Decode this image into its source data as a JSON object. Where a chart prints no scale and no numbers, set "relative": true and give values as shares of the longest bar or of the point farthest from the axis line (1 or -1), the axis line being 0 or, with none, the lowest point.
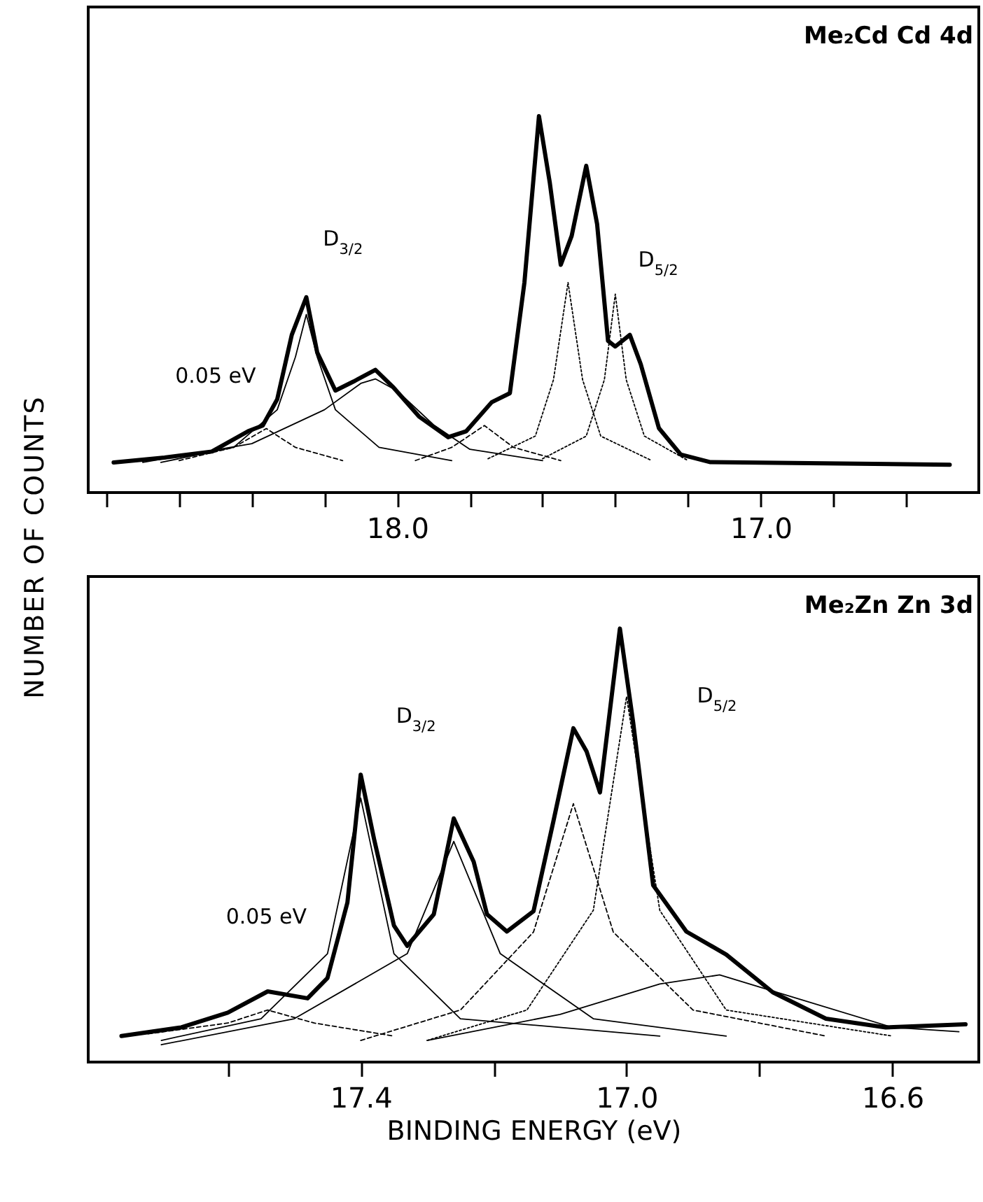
{
  "chart_data": [
    {
      "type": "line",
      "title": "Me₂Cd   Cd  4d",
      "ylabel": "NUMBER OF COUNTS",
      "relative": true,
      "xlim": [
        18.85,
        16.4
      ],
      "xticks": [
        {
          "value": 18.8,
          "label": null
        },
        {
          "value": 18.6,
          "label": null
        },
        {
          "value": 18.4,
          "label": null
        },
        {
          "value": 18.2,
          "label": null
        },
        {
          "value": 18.0,
          "label": "18.0"
        },
        {
          "value": 17.8,
          "label": null
        },
        {
          "value": 17.6,
          "label": null
        },
        {
          "value": 17.4,
          "label": null
        },
        {
          "value": 17.2,
          "label": null
        },
        {
          "value": 17.0,
          "label": "17.0"
        },
        {
          "value": 16.8,
          "label": null
        },
        {
          "value": 16.6,
          "label": null
        }
      ],
      "series": [
        {
          "color": "#000000",
          "line_style": "solid",
          "x": [
            18.78,
            18.64,
            18.51,
            18.41,
            18.37,
            18.33,
            18.29,
            18.25,
            18.22,
            18.17,
            18.12,
            18.06,
            18.01,
            17.94,
            17.86,
            17.81,
            17.74,
            17.69,
            17.65,
            17.61,
            17.58,
            17.55,
            17.52,
            17.48,
            17.45,
            17.42,
            17.4,
            17.36,
            17.33,
            17.28,
            17.22,
            17.14,
            16.48
          ],
          "values": [
            0.08,
            0.093,
            0.109,
            0.163,
            0.178,
            0.248,
            0.419,
            0.519,
            0.372,
            0.271,
            0.295,
            0.326,
            0.279,
            0.202,
            0.147,
            0.163,
            0.24,
            0.264,
            0.558,
            1.0,
            0.822,
            0.605,
            0.682,
            0.868,
            0.713,
            0.403,
            0.388,
            0.419,
            0.341,
            0.171,
            0.101,
            0.081,
            0.074
          ]
        },
        {
          "color": "#000000",
          "line_style": "dashed",
          "x": [
            18.6,
            18.45,
            18.36,
            18.28,
            18.15
          ],
          "values": [
            0.085,
            0.12,
            0.17,
            0.12,
            0.085
          ]
        },
        {
          "color": "#000000",
          "line_style": "solid",
          "x": [
            18.65,
            18.45,
            18.33,
            18.28,
            18.25,
            18.22,
            18.17,
            18.05,
            17.85
          ],
          "values": [
            0.08,
            0.12,
            0.22,
            0.36,
            0.473,
            0.36,
            0.22,
            0.12,
            0.085
          ]
        },
        {
          "color": "#000000",
          "line_style": "solid",
          "x": [
            18.7,
            18.4,
            18.2,
            18.1,
            18.06,
            18.0,
            17.9,
            17.8,
            17.6
          ],
          "values": [
            0.08,
            0.13,
            0.22,
            0.29,
            0.302,
            0.27,
            0.18,
            0.115,
            0.085
          ]
        },
        {
          "color": "#000000",
          "line_style": "dashed",
          "x": [
            17.95,
            17.85,
            17.76,
            17.68,
            17.55
          ],
          "values": [
            0.085,
            0.12,
            0.178,
            0.12,
            0.085
          ]
        },
        {
          "color": "#000000",
          "line_style": "dotted",
          "x": [
            17.75,
            17.62,
            17.57,
            17.53,
            17.49,
            17.44,
            17.3
          ],
          "values": [
            0.09,
            0.15,
            0.3,
            0.558,
            0.3,
            0.15,
            0.085
          ]
        },
        {
          "color": "#000000",
          "line_style": "dotted",
          "x": [
            17.6,
            17.48,
            17.43,
            17.4,
            17.37,
            17.32,
            17.2
          ],
          "values": [
            0.09,
            0.15,
            0.3,
            0.527,
            0.3,
            0.15,
            0.085
          ]
        }
      ],
      "annotations": [
        "D$_{3/2}$",
        "D$_{5/2}$",
        "0.05 eV"
      ]
    },
    {
      "type": "line",
      "title": "Me₂Zn   Zn  3d",
      "xlabel": "BINDING ENERGY (eV)",
      "relative": true,
      "xlim": [
        17.81,
        16.47
      ],
      "xticks": [
        {
          "value": 17.6,
          "label": null
        },
        {
          "value": 17.4,
          "label": "17.4"
        },
        {
          "value": 17.2,
          "label": null
        },
        {
          "value": 17.0,
          "label": "17.0"
        },
        {
          "value": 16.8,
          "label": null
        },
        {
          "value": 16.6,
          "label": "16.6"
        }
      ],
      "series": [
        {
          "color": "#000000",
          "line_style": "solid",
          "x": [
            17.76,
            17.67,
            17.6,
            17.54,
            17.48,
            17.45,
            17.42,
            17.4,
            17.38,
            17.35,
            17.33,
            17.29,
            17.26,
            17.23,
            17.21,
            17.18,
            17.14,
            17.11,
            17.08,
            17.06,
            17.04,
            17.01,
            16.99,
            16.96,
            16.91,
            16.85,
            16.78,
            16.7,
            16.61,
            16.49
          ],
          "values": [
            0.06,
            0.08,
            0.114,
            0.163,
            0.147,
            0.194,
            0.368,
            0.663,
            0.515,
            0.315,
            0.268,
            0.341,
            0.562,
            0.462,
            0.341,
            0.301,
            0.348,
            0.556,
            0.77,
            0.716,
            0.622,
            1.0,
            0.783,
            0.408,
            0.301,
            0.248,
            0.161,
            0.1,
            0.08,
            0.087
          ]
        },
        {
          "color": "#000000",
          "line_style": "dashed",
          "x": [
            17.72,
            17.6,
            17.54,
            17.47,
            17.35
          ],
          "values": [
            0.065,
            0.09,
            0.12,
            0.09,
            0.06
          ]
        },
        {
          "color": "#000000",
          "line_style": "solid",
          "x": [
            17.7,
            17.55,
            17.45,
            17.4,
            17.35,
            17.25,
            16.95
          ],
          "values": [
            0.05,
            0.1,
            0.25,
            0.609,
            0.25,
            0.1,
            0.06
          ]
        },
        {
          "color": "#000000",
          "line_style": "solid",
          "x": [
            17.7,
            17.5,
            17.33,
            17.26,
            17.19,
            17.05,
            16.85
          ],
          "values": [
            0.04,
            0.1,
            0.25,
            0.509,
            0.25,
            0.1,
            0.06
          ]
        },
        {
          "color": "#000000",
          "line_style": "dashed",
          "x": [
            17.4,
            17.25,
            17.14,
            17.08,
            17.02,
            16.9,
            16.7
          ],
          "values": [
            0.05,
            0.12,
            0.3,
            0.596,
            0.3,
            0.12,
            0.06
          ]
        },
        {
          "color": "#000000",
          "line_style": "dotted",
          "x": [
            17.3,
            17.15,
            17.05,
            17.0,
            16.95,
            16.85,
            16.6
          ],
          "values": [
            0.05,
            0.12,
            0.35,
            0.843,
            0.35,
            0.12,
            0.06
          ]
        },
        {
          "color": "#000000",
          "line_style": "solid",
          "x": [
            17.3,
            17.1,
            16.95,
            16.86,
            16.75,
            16.6,
            16.5
          ],
          "values": [
            0.05,
            0.11,
            0.18,
            0.201,
            0.15,
            0.08,
            0.07
          ]
        }
      ],
      "annotations": [
        "D$_{3/2}$",
        "D$_{5/2}$",
        "0.05 eV"
      ]
    }
  ]
}
